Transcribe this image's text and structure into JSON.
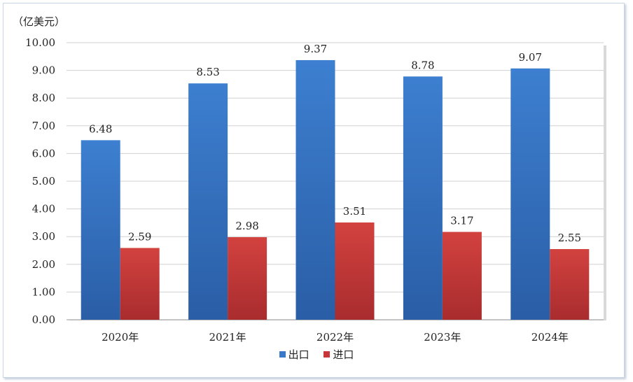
{
  "chart_data": {
    "type": "bar",
    "unit_label": "（亿美元）",
    "categories": [
      "2020年",
      "2021年",
      "2022年",
      "2023年",
      "2024年"
    ],
    "series": [
      {
        "name": "出口",
        "values": [
          6.48,
          8.53,
          9.37,
          8.78,
          9.07
        ],
        "color": "#3a78c8",
        "label_texts": [
          "6.48",
          "8.53",
          "9.37",
          "8.78",
          "9.07"
        ]
      },
      {
        "name": "进口",
        "values": [
          2.59,
          2.98,
          3.51,
          3.17,
          2.55
        ],
        "color": "#c8363a",
        "label_texts": [
          "2.59",
          "2.98",
          "3.51",
          "3.17",
          "2.55"
        ]
      }
    ],
    "y_ticks": [
      "0.00",
      "1.00",
      "2.00",
      "3.00",
      "4.00",
      "5.00",
      "6.00",
      "7.00",
      "8.00",
      "9.00",
      "10.00"
    ],
    "ylim": [
      0,
      10
    ],
    "grid": true,
    "legend_position": "bottom"
  }
}
